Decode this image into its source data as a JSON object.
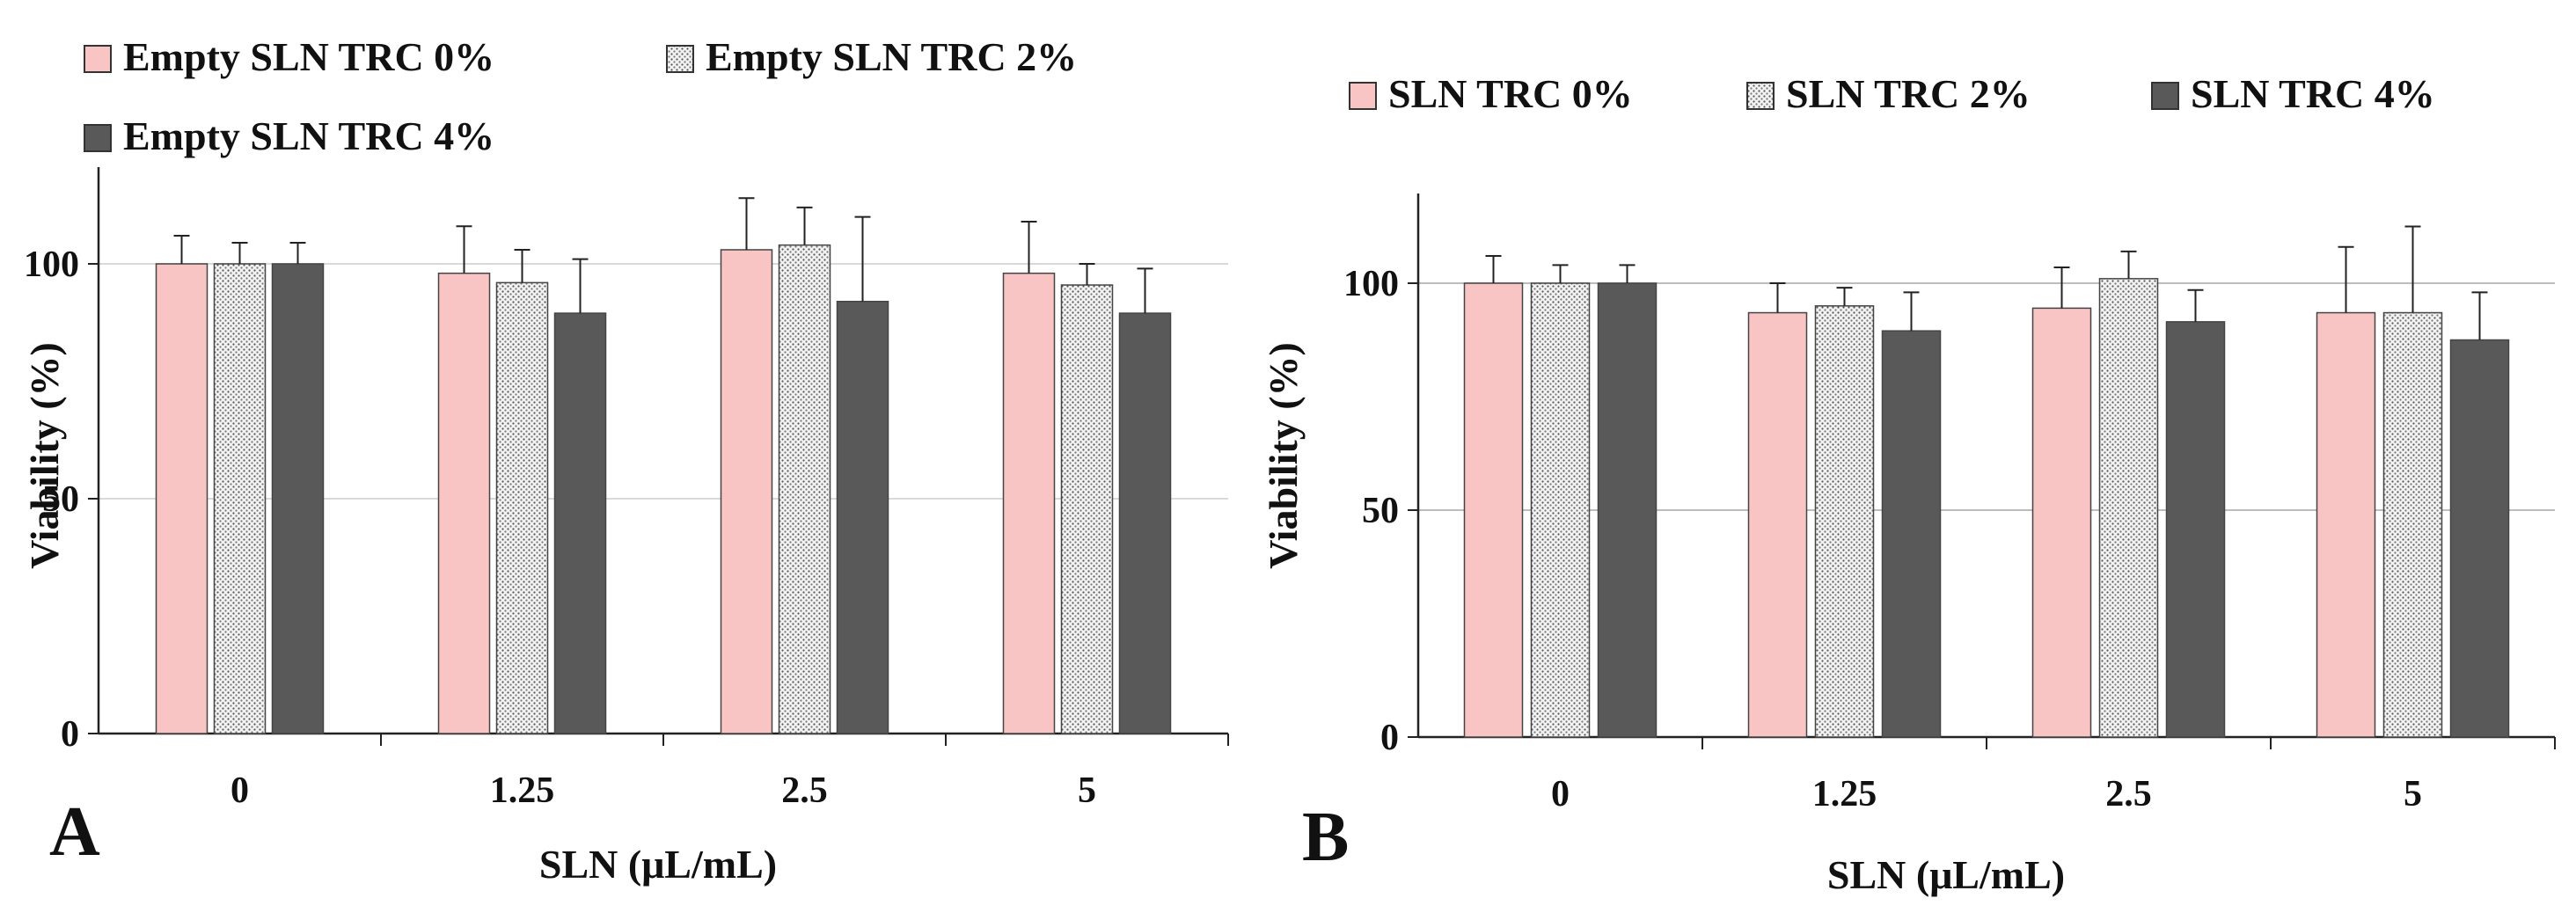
{
  "chart_data": [
    {
      "type": "bar",
      "panel_label": "A",
      "categories": [
        "0",
        "1.25",
        "2.5",
        "5"
      ],
      "series": [
        {
          "name": "Empty SLN TRC 0%",
          "values": [
            100,
            98,
            103,
            98
          ],
          "errors": [
            6,
            10,
            11,
            11
          ],
          "color": "#f9c4c4",
          "pattern": "solid"
        },
        {
          "name": "Empty SLN TRC 2%",
          "values": [
            100,
            96,
            104,
            95.5
          ],
          "errors": [
            4.5,
            7,
            8,
            4.5
          ],
          "color": "#e0e0e0",
          "pattern": "dots"
        },
        {
          "name": "Empty SLN TRC 4%",
          "values": [
            100,
            89.5,
            92,
            89.5
          ],
          "errors": [
            4.5,
            11.5,
            18,
            9.5
          ],
          "color": "#595959",
          "pattern": "solid"
        }
      ],
      "xlabel": "SLN (μL/mL)",
      "ylabel": "Viability (%)",
      "yticks": [
        "0",
        "50",
        "100"
      ],
      "ylim": [
        0,
        120
      ],
      "grid": true,
      "legend_position": "top"
    },
    {
      "type": "bar",
      "panel_label": "B",
      "categories": [
        "0",
        "1.25",
        "2.5",
        "5"
      ],
      "series": [
        {
          "name": "SLN TRC 0%",
          "values": [
            100,
            93.5,
            94.5,
            93.5
          ],
          "errors": [
            6,
            6.5,
            9,
            14.5
          ],
          "color": "#f9c4c4",
          "pattern": "solid"
        },
        {
          "name": "SLN TRC 2%",
          "values": [
            100,
            95,
            101,
            93.5
          ],
          "errors": [
            4,
            4,
            6,
            19
          ],
          "color": "#e0e0e0",
          "pattern": "dots"
        },
        {
          "name": "SLN TRC 4%",
          "values": [
            100,
            89.5,
            91.5,
            87.5
          ],
          "errors": [
            4,
            8.5,
            7,
            10.5
          ],
          "color": "#595959",
          "pattern": "solid"
        }
      ],
      "xlabel": "SLN (μL/mL)",
      "ylabel": "Viability (%)",
      "yticks": [
        "0",
        "50",
        "100"
      ],
      "ylim": [
        0,
        100
      ],
      "grid": true,
      "legend_position": "top"
    }
  ]
}
